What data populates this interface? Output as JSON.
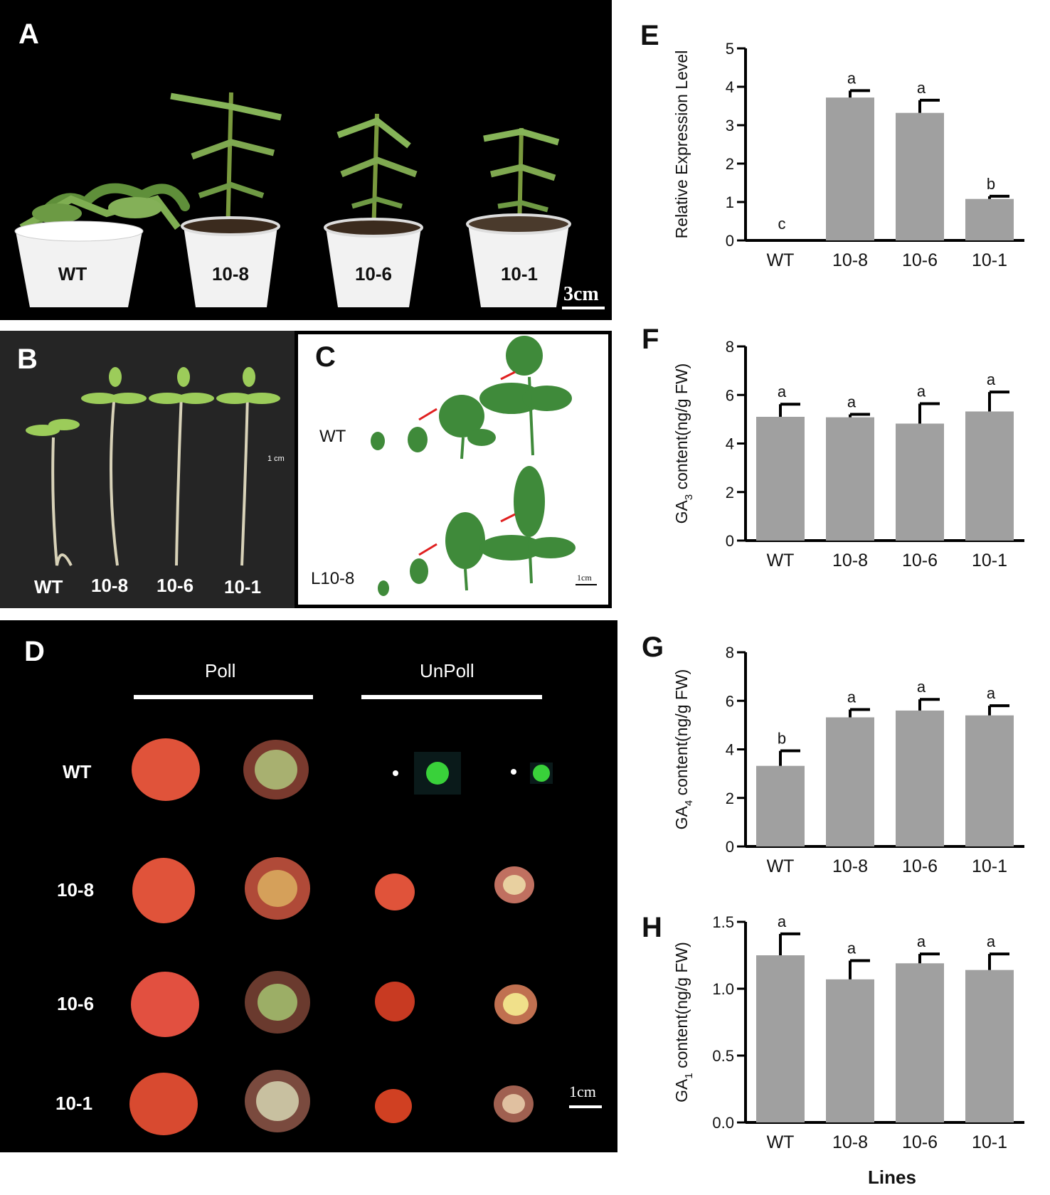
{
  "panel_a": {
    "label": "A",
    "pots": [
      "WT",
      "10-8",
      "10-6",
      "10-1"
    ],
    "scale": "3cm"
  },
  "panel_b": {
    "label": "B",
    "seedlings": [
      "WT",
      "10-8",
      "10-6",
      "10-1"
    ],
    "scale": "1 cm"
  },
  "panel_c": {
    "label": "C",
    "row_wt": "WT",
    "row_l": "L10-8",
    "scale": "1cm"
  },
  "panel_d": {
    "label": "D",
    "col_poll": "Poll",
    "col_unpoll": "UnPoll",
    "rows": [
      "WT",
      "10-8",
      "10-6",
      "10-1"
    ],
    "scale": "1cm"
  },
  "shared_xlabel": "Lines",
  "chart_data": [
    {
      "panel": "E",
      "type": "bar",
      "ylabel": "Relative Expression Level",
      "categories": [
        "WT",
        "10-8",
        "10-6",
        "10-1"
      ],
      "values": [
        0.0,
        3.72,
        3.32,
        1.08
      ],
      "errors": [
        0.0,
        0.18,
        0.33,
        0.07
      ],
      "letters": [
        "c",
        "a",
        "a",
        "b"
      ],
      "ylim": [
        0,
        5
      ],
      "yticks": [
        "0",
        "1",
        "2",
        "3",
        "4",
        "5"
      ],
      "bar_color": "#a0a0a0"
    },
    {
      "panel": "F",
      "type": "bar",
      "ylabel_pre": "GA",
      "ylabel_sub": "3",
      "ylabel_post": " content(ng/g FW)",
      "categories": [
        "WT",
        "10-8",
        "10-6",
        "10-1"
      ],
      "values": [
        5.1,
        5.08,
        4.82,
        5.32
      ],
      "errors": [
        0.52,
        0.12,
        0.82,
        0.8
      ],
      "letters": [
        "a",
        "a",
        "a",
        "a"
      ],
      "ylim": [
        0,
        8
      ],
      "yticks": [
        "0",
        "2",
        "4",
        "6",
        "8"
      ],
      "bar_color": "#a0a0a0"
    },
    {
      "panel": "G",
      "type": "bar",
      "ylabel_pre": "GA",
      "ylabel_sub": "4",
      "ylabel_post": " content(ng/g FW)",
      "categories": [
        "WT",
        "10-8",
        "10-6",
        "10-1"
      ],
      "values": [
        3.32,
        5.32,
        5.6,
        5.4
      ],
      "errors": [
        0.62,
        0.32,
        0.46,
        0.4
      ],
      "letters": [
        "b",
        "a",
        "a",
        "a"
      ],
      "ylim": [
        0,
        8
      ],
      "yticks": [
        "0",
        "2",
        "4",
        "6",
        "8"
      ],
      "bar_color": "#a0a0a0"
    },
    {
      "panel": "H",
      "type": "bar",
      "ylabel_pre": "GA",
      "ylabel_sub": "1",
      "ylabel_post": " content(ng/g FW)",
      "categories": [
        "WT",
        "10-8",
        "10-6",
        "10-1"
      ],
      "values": [
        1.25,
        1.07,
        1.19,
        1.14
      ],
      "errors": [
        0.16,
        0.14,
        0.07,
        0.12
      ],
      "letters": [
        "a",
        "a",
        "a",
        "a"
      ],
      "ylim": [
        0,
        1.5
      ],
      "yticks": [
        "0.0",
        "0.5",
        "1.0",
        "1.5"
      ],
      "bar_color": "#a0a0a0"
    }
  ]
}
